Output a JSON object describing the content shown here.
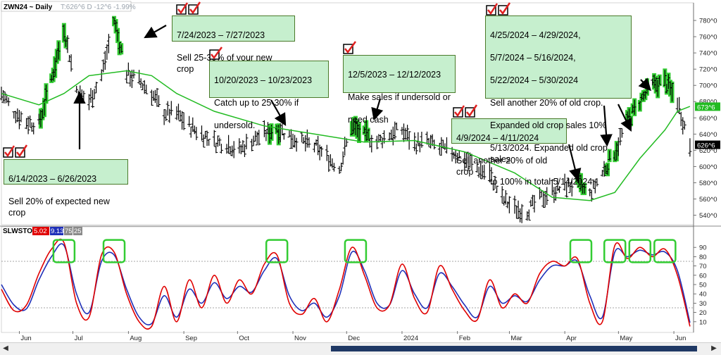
{
  "header": {
    "symbol": "ZWN24 ~ Daily",
    "quote": "T:626^6 D -12^6 -1.99%"
  },
  "indicator": {
    "name": "SLWSTO",
    "k": "5.02",
    "d": "9.13",
    "upper": "75",
    "lower": "25"
  },
  "colors": {
    "k_line": "#e00000",
    "d_line": "#1f2fb8",
    "ma_line": "#22bb22",
    "highlight": "#33cc33",
    "box": "#c6efce",
    "check": "#e02020"
  },
  "chart_data": [
    {
      "type": "bar",
      "subtype": "ohlc-price",
      "ylim": [
        530,
        800
      ],
      "y_ticks": [
        "540^0",
        "560^0",
        "580^0",
        "600^0",
        "620^0",
        "640^0",
        "660^0",
        "680^0",
        "700^0",
        "720^0",
        "740^0",
        "760^0",
        "780^0"
      ],
      "y_tick_values": [
        540,
        560,
        580,
        600,
        620,
        640,
        660,
        680,
        700,
        720,
        740,
        760,
        780
      ],
      "x_months": [
        "Jun",
        "Jul",
        "Aug",
        "Sep",
        "Oct",
        "Nov",
        "Dec",
        "2024",
        "Feb",
        "Mar",
        "Apr",
        "May",
        "Jun"
      ],
      "last_price_label": "626^6",
      "ma_label": "673^6",
      "close_points": [
        [
          "2023-05-22",
          690
        ],
        [
          "2023-05-29",
          668
        ],
        [
          "2023-06-05",
          655
        ],
        [
          "2023-06-12",
          652
        ],
        [
          "2023-06-19",
          708
        ],
        [
          "2023-06-26",
          770
        ],
        [
          "2023-07-03",
          695
        ],
        [
          "2023-07-10",
          680
        ],
        [
          "2023-07-17",
          712
        ],
        [
          "2023-07-24",
          780
        ],
        [
          "2023-07-31",
          715
        ],
        [
          "2023-08-07",
          705
        ],
        [
          "2023-08-14",
          690
        ],
        [
          "2023-08-21",
          666
        ],
        [
          "2023-08-28",
          665
        ],
        [
          "2023-09-04",
          650
        ],
        [
          "2023-09-11",
          640
        ],
        [
          "2023-09-18",
          630
        ],
        [
          "2023-09-25",
          628
        ],
        [
          "2023-10-02",
          620
        ],
        [
          "2023-10-09",
          632
        ],
        [
          "2023-10-16",
          640
        ],
        [
          "2023-10-23",
          648
        ],
        [
          "2023-10-30",
          638
        ],
        [
          "2023-11-06",
          630
        ],
        [
          "2023-11-13",
          625
        ],
        [
          "2023-11-20",
          612
        ],
        [
          "2023-11-27",
          598
        ],
        [
          "2023-12-04",
          650
        ],
        [
          "2023-12-11",
          638
        ],
        [
          "2023-12-18",
          630
        ],
        [
          "2023-12-25",
          640
        ],
        [
          "2024-01-01",
          645
        ],
        [
          "2024-01-08",
          628
        ],
        [
          "2024-01-15",
          630
        ],
        [
          "2024-01-22",
          622
        ],
        [
          "2024-01-29",
          618
        ],
        [
          "2024-02-05",
          610
        ],
        [
          "2024-02-12",
          598
        ],
        [
          "2024-02-19",
          590
        ],
        [
          "2024-02-26",
          560
        ],
        [
          "2024-03-04",
          548
        ],
        [
          "2024-03-11",
          545
        ],
        [
          "2024-03-18",
          560
        ],
        [
          "2024-03-25",
          570
        ],
        [
          "2024-04-01",
          575
        ],
        [
          "2024-04-08",
          578
        ],
        [
          "2024-04-15",
          565
        ],
        [
          "2024-04-22",
          592
        ],
        [
          "2024-04-29",
          618
        ],
        [
          "2024-05-06",
          655
        ],
        [
          "2024-05-13",
          680
        ],
        [
          "2024-05-20",
          700
        ],
        [
          "2024-05-27",
          705
        ],
        [
          "2024-06-03",
          680
        ],
        [
          "2024-06-10",
          626
        ]
      ],
      "ma_points": [
        [
          "2023-05-22",
          690
        ],
        [
          "2023-06-12",
          676
        ],
        [
          "2023-06-26",
          690
        ],
        [
          "2023-07-10",
          712
        ],
        [
          "2023-07-31",
          718
        ],
        [
          "2023-08-14",
          712
        ],
        [
          "2023-08-28",
          690
        ],
        [
          "2023-09-18",
          668
        ],
        [
          "2023-10-16",
          650
        ],
        [
          "2023-11-13",
          640
        ],
        [
          "2023-12-11",
          630
        ],
        [
          "2024-01-08",
          632
        ],
        [
          "2024-02-05",
          618
        ],
        [
          "2024-03-04",
          592
        ],
        [
          "2024-03-25",
          562
        ],
        [
          "2024-04-15",
          558
        ],
        [
          "2024-04-29",
          568
        ],
        [
          "2024-05-13",
          610
        ],
        [
          "2024-05-27",
          645
        ],
        [
          "2024-06-03",
          668
        ],
        [
          "2024-06-10",
          674
        ]
      ],
      "highlighted_ranges": [
        [
          "2023-06-14",
          "2023-06-26"
        ],
        [
          "2023-07-24",
          "2023-07-27"
        ],
        [
          "2023-10-20",
          "2023-10-23"
        ],
        [
          "2023-12-05",
          "2023-12-12"
        ],
        [
          "2024-04-09",
          "2024-04-11"
        ],
        [
          "2024-04-25",
          "2024-04-29"
        ],
        [
          "2024-05-07",
          "2024-05-16"
        ],
        [
          "2024-05-22",
          "2024-05-30"
        ]
      ]
    },
    {
      "type": "line",
      "name": "SLWSTO",
      "ylim": [
        0,
        100
      ],
      "y_ticks": [
        "10",
        "20",
        "30",
        "40",
        "50",
        "60",
        "70",
        "80",
        "90"
      ],
      "y_tick_values": [
        10,
        20,
        30,
        40,
        50,
        60,
        70,
        80,
        90
      ],
      "ref_lines": [
        75,
        25
      ],
      "series": [
        {
          "name": "5.02",
          "points": [
            [
              "2023-05-22",
              45
            ],
            [
              "2023-05-29",
              22
            ],
            [
              "2023-06-05",
              28
            ],
            [
              "2023-06-12",
              62
            ],
            [
              "2023-06-19",
              88
            ],
            [
              "2023-06-26",
              95
            ],
            [
              "2023-07-03",
              30
            ],
            [
              "2023-07-10",
              15
            ],
            [
              "2023-07-17",
              82
            ],
            [
              "2023-07-24",
              85
            ],
            [
              "2023-07-31",
              40
            ],
            [
              "2023-08-07",
              10
            ],
            [
              "2023-08-14",
              5
            ],
            [
              "2023-08-21",
              48
            ],
            [
              "2023-08-28",
              10
            ],
            [
              "2023-09-04",
              55
            ],
            [
              "2023-09-11",
              25
            ],
            [
              "2023-09-18",
              60
            ],
            [
              "2023-09-25",
              30
            ],
            [
              "2023-10-02",
              55
            ],
            [
              "2023-10-09",
              40
            ],
            [
              "2023-10-16",
              72
            ],
            [
              "2023-10-23",
              82
            ],
            [
              "2023-10-30",
              30
            ],
            [
              "2023-11-06",
              18
            ],
            [
              "2023-11-13",
              35
            ],
            [
              "2023-11-20",
              10
            ],
            [
              "2023-11-27",
              45
            ],
            [
              "2023-12-04",
              90
            ],
            [
              "2023-12-11",
              60
            ],
            [
              "2023-12-18",
              25
            ],
            [
              "2023-12-25",
              28
            ],
            [
              "2024-01-01",
              72
            ],
            [
              "2024-01-08",
              35
            ],
            [
              "2024-01-15",
              20
            ],
            [
              "2024-01-22",
              70
            ],
            [
              "2024-01-29",
              45
            ],
            [
              "2024-02-05",
              22
            ],
            [
              "2024-02-12",
              12
            ],
            [
              "2024-02-19",
              55
            ],
            [
              "2024-02-26",
              25
            ],
            [
              "2024-03-04",
              40
            ],
            [
              "2024-03-11",
              30
            ],
            [
              "2024-03-18",
              62
            ],
            [
              "2024-03-25",
              75
            ],
            [
              "2024-04-01",
              70
            ],
            [
              "2024-04-08",
              78
            ],
            [
              "2024-04-15",
              30
            ],
            [
              "2024-04-22",
              10
            ],
            [
              "2024-04-29",
              92
            ],
            [
              "2024-05-06",
              78
            ],
            [
              "2024-05-13",
              90
            ],
            [
              "2024-05-20",
              80
            ],
            [
              "2024-05-27",
              88
            ],
            [
              "2024-06-03",
              60
            ],
            [
              "2024-06-10",
              5
            ]
          ]
        },
        {
          "name": "9.13",
          "points": [
            [
              "2023-05-22",
              50
            ],
            [
              "2023-05-29",
              28
            ],
            [
              "2023-06-05",
              24
            ],
            [
              "2023-06-12",
              55
            ],
            [
              "2023-06-19",
              80
            ],
            [
              "2023-06-26",
              92
            ],
            [
              "2023-07-03",
              40
            ],
            [
              "2023-07-10",
              20
            ],
            [
              "2023-07-17",
              75
            ],
            [
              "2023-07-24",
              82
            ],
            [
              "2023-07-31",
              45
            ],
            [
              "2023-08-07",
              15
            ],
            [
              "2023-08-14",
              8
            ],
            [
              "2023-08-21",
              38
            ],
            [
              "2023-08-28",
              15
            ],
            [
              "2023-09-04",
              45
            ],
            [
              "2023-09-11",
              30
            ],
            [
              "2023-09-18",
              52
            ],
            [
              "2023-09-25",
              35
            ],
            [
              "2023-10-02",
              48
            ],
            [
              "2023-10-09",
              42
            ],
            [
              "2023-10-16",
              65
            ],
            [
              "2023-10-23",
              78
            ],
            [
              "2023-10-30",
              38
            ],
            [
              "2023-11-06",
              22
            ],
            [
              "2023-11-13",
              30
            ],
            [
              "2023-11-20",
              15
            ],
            [
              "2023-11-27",
              38
            ],
            [
              "2023-12-04",
              85
            ],
            [
              "2023-12-11",
              65
            ],
            [
              "2023-12-18",
              30
            ],
            [
              "2023-12-25",
              28
            ],
            [
              "2024-01-01",
              65
            ],
            [
              "2024-01-08",
              40
            ],
            [
              "2024-01-15",
              25
            ],
            [
              "2024-01-22",
              62
            ],
            [
              "2024-01-29",
              48
            ],
            [
              "2024-02-05",
              28
            ],
            [
              "2024-02-12",
              15
            ],
            [
              "2024-02-19",
              48
            ],
            [
              "2024-02-26",
              30
            ],
            [
              "2024-03-04",
              38
            ],
            [
              "2024-03-11",
              32
            ],
            [
              "2024-03-18",
              55
            ],
            [
              "2024-03-25",
              70
            ],
            [
              "2024-04-01",
              70
            ],
            [
              "2024-04-08",
              75
            ],
            [
              "2024-04-15",
              38
            ],
            [
              "2024-04-22",
              15
            ],
            [
              "2024-04-29",
              85
            ],
            [
              "2024-05-06",
              80
            ],
            [
              "2024-05-13",
              87
            ],
            [
              "2024-05-20",
              82
            ],
            [
              "2024-05-27",
              85
            ],
            [
              "2024-06-03",
              65
            ],
            [
              "2024-06-10",
              9
            ]
          ]
        }
      ],
      "signal_boxes": [
        "2023-06-26",
        "2023-07-24",
        "2023-10-23",
        "2023-12-06",
        "2024-04-10",
        "2024-04-29",
        "2024-05-13",
        "2024-05-27"
      ]
    }
  ],
  "annotations": [
    {
      "id": "a1",
      "lines": [
        "6/14/2023 – 6/26/2023",
        "Sell 20% of expected new crop"
      ],
      "checks": 2
    },
    {
      "id": "a2",
      "lines": [
        "7/24/2023 – 7/27/2023",
        "Sell 25-30% of your new crop"
      ],
      "checks": 2
    },
    {
      "id": "a3",
      "lines": [
        "10/20/2023 – 10/23/2023",
        "Catch up to 25-30% if",
        "undersold."
      ],
      "checks": 1
    },
    {
      "id": "a4",
      "lines": [
        "12/5/2023 – 12/12/2023",
        "Make sales if undersold or",
        "need cash"
      ],
      "checks": 1
    },
    {
      "id": "a5",
      "lines": [
        "4/9/2024 – 4/11/2024",
        "Sell another 20% of old crop"
      ],
      "checks": 2
    },
    {
      "id": "a6",
      "lines": [
        "4/25/2024 – 4/29/2024,",
        "5/7/2024 – 5/16/2024,",
        "5/22/2024 – 5/30/2024",
        "Sell another 20% of old crop.",
        "Expanded old crop sales 10%",
        "5/13/2024. Expanded old crop sales",
        "to 100% in total 5/14/2024."
      ],
      "checks": 2
    }
  ]
}
